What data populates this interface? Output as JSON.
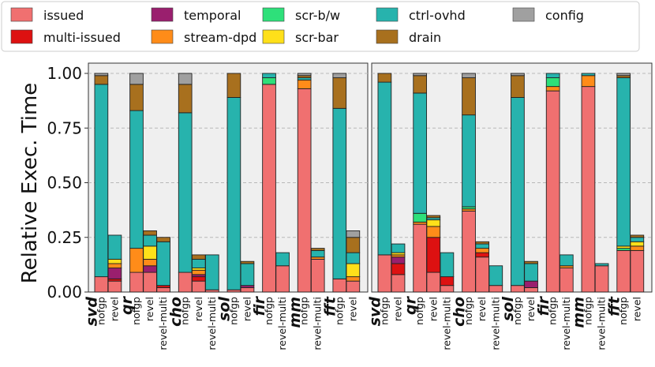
{
  "chart_data": {
    "type": "bar",
    "subtype": "stacked",
    "ylabel": "Relative Exec. Time",
    "ylim": [
      0,
      1.0
    ],
    "yticks": [
      "0.00",
      "0.25",
      "0.50",
      "0.75",
      "1.00"
    ],
    "ytick_values": [
      0,
      0.25,
      0.5,
      0.75,
      1.0
    ],
    "grid": "horizontal dashed",
    "legend_position": "top",
    "segments": [
      {
        "name": "issued",
        "color": "#f07070"
      },
      {
        "name": "multi-issued",
        "color": "#dd1111"
      },
      {
        "name": "temporal",
        "color": "#9a1f6e"
      },
      {
        "name": "stream-dpd",
        "color": "#ff8c19"
      },
      {
        "name": "scr-b/w",
        "color": "#2ee07a"
      },
      {
        "name": "scr-bar",
        "color": "#ffe01a"
      },
      {
        "name": "ctrl-ovhd",
        "color": "#27b3ad"
      },
      {
        "name": "drain",
        "color": "#a8701e"
      },
      {
        "name": "config",
        "color": "#a0a0a0"
      }
    ],
    "panels": [
      {
        "groups": [
          {
            "benchmark": "svd",
            "bars": [
              {
                "label": "nofgp",
                "values": [
                  0.07,
                  0.0,
                  0.0,
                  0.0,
                  0.0,
                  0.0,
                  0.88,
                  0.04,
                  0.01
                ]
              },
              {
                "label": "revel",
                "values": [
                  0.05,
                  0.01,
                  0.05,
                  0.02,
                  0.0,
                  0.02,
                  0.11,
                  0.0,
                  0.0
                ]
              }
            ]
          },
          {
            "benchmark": "qr",
            "bars": [
              {
                "label": "nofgp",
                "values": [
                  0.09,
                  0.0,
                  0.0,
                  0.11,
                  0.0,
                  0.0,
                  0.63,
                  0.12,
                  0.05
                ]
              },
              {
                "label": "revel",
                "values": [
                  0.09,
                  0.0,
                  0.03,
                  0.03,
                  0.0,
                  0.06,
                  0.05,
                  0.02,
                  0.0
                ]
              },
              {
                "label": "revel-multi",
                "values": [
                  0.02,
                  0.01,
                  0.0,
                  0.0,
                  0.0,
                  0.0,
                  0.2,
                  0.02,
                  0.0
                ]
              }
            ]
          },
          {
            "benchmark": "cho",
            "bars": [
              {
                "label": "nofgp",
                "values": [
                  0.09,
                  0.0,
                  0.0,
                  0.0,
                  0.0,
                  0.0,
                  0.73,
                  0.13,
                  0.05
                ]
              },
              {
                "label": "revel",
                "values": [
                  0.05,
                  0.02,
                  0.01,
                  0.02,
                  0.0,
                  0.01,
                  0.04,
                  0.02,
                  0.0
                ]
              },
              {
                "label": "revel-multi",
                "values": [
                  0.01,
                  0.0,
                  0.0,
                  0.0,
                  0.0,
                  0.0,
                  0.16,
                  0.0,
                  0.0
                ]
              }
            ]
          },
          {
            "benchmark": "sol",
            "bars": [
              {
                "label": "nofgp",
                "values": [
                  0.01,
                  0.0,
                  0.0,
                  0.0,
                  0.0,
                  0.0,
                  0.88,
                  0.11,
                  0.0
                ]
              },
              {
                "label": "revel",
                "values": [
                  0.02,
                  0.0,
                  0.01,
                  0.0,
                  0.0,
                  0.0,
                  0.1,
                  0.01,
                  0.0
                ]
              }
            ]
          },
          {
            "benchmark": "fir",
            "bars": [
              {
                "label": "nofgp",
                "values": [
                  0.95,
                  0.0,
                  0.0,
                  0.0,
                  0.03,
                  0.0,
                  0.02,
                  0.0,
                  0.0
                ]
              },
              {
                "label": "revel-multi",
                "values": [
                  0.12,
                  0.0,
                  0.0,
                  0.0,
                  0.0,
                  0.0,
                  0.06,
                  0.0,
                  0.0
                ]
              }
            ]
          },
          {
            "benchmark": "mm",
            "bars": [
              {
                "label": "nofgp",
                "values": [
                  0.93,
                  0.0,
                  0.0,
                  0.04,
                  0.0,
                  0.0,
                  0.01,
                  0.01,
                  0.01
                ]
              },
              {
                "label": "revel-multi",
                "values": [
                  0.15,
                  0.0,
                  0.0,
                  0.01,
                  0.0,
                  0.0,
                  0.03,
                  0.01,
                  0.0
                ]
              }
            ]
          },
          {
            "benchmark": "fft",
            "bars": [
              {
                "label": "nofgp",
                "values": [
                  0.06,
                  0.0,
                  0.0,
                  0.0,
                  0.0,
                  0.0,
                  0.78,
                  0.14,
                  0.02
                ]
              },
              {
                "label": "revel",
                "values": [
                  0.05,
                  0.0,
                  0.0,
                  0.02,
                  0.0,
                  0.06,
                  0.05,
                  0.07,
                  0.03
                ]
              }
            ]
          }
        ]
      },
      {
        "groups": [
          {
            "benchmark": "svd",
            "bars": [
              {
                "label": "nofgp",
                "values": [
                  0.17,
                  0.0,
                  0.0,
                  0.0,
                  0.0,
                  0.0,
                  0.79,
                  0.04,
                  0.0
                ]
              },
              {
                "label": "revel",
                "values": [
                  0.08,
                  0.05,
                  0.03,
                  0.01,
                  0.0,
                  0.01,
                  0.04,
                  0.0,
                  0.0
                ]
              }
            ]
          },
          {
            "benchmark": "qr",
            "bars": [
              {
                "label": "nofgp",
                "values": [
                  0.31,
                  0.0,
                  0.0,
                  0.01,
                  0.04,
                  0.0,
                  0.55,
                  0.08,
                  0.01
                ]
              },
              {
                "label": "revel",
                "values": [
                  0.09,
                  0.16,
                  0.0,
                  0.05,
                  0.0,
                  0.03,
                  0.01,
                  0.01,
                  0.0
                ]
              },
              {
                "label": "revel-multi",
                "values": [
                  0.03,
                  0.04,
                  0.0,
                  0.0,
                  0.0,
                  0.0,
                  0.11,
                  0.0,
                  0.0
                ]
              }
            ]
          },
          {
            "benchmark": "cho",
            "bars": [
              {
                "label": "nofgp",
                "values": [
                  0.37,
                  0.0,
                  0.0,
                  0.01,
                  0.01,
                  0.0,
                  0.42,
                  0.17,
                  0.02
                ]
              },
              {
                "label": "revel",
                "values": [
                  0.16,
                  0.02,
                  0.0,
                  0.02,
                  0.0,
                  0.0,
                  0.02,
                  0.01,
                  0.0
                ]
              },
              {
                "label": "revel-multi",
                "values": [
                  0.03,
                  0.0,
                  0.0,
                  0.0,
                  0.0,
                  0.0,
                  0.09,
                  0.0,
                  0.0
                ]
              }
            ]
          },
          {
            "benchmark": "sol",
            "bars": [
              {
                "label": "nofgp",
                "values": [
                  0.03,
                  0.0,
                  0.0,
                  0.0,
                  0.0,
                  0.0,
                  0.86,
                  0.1,
                  0.01
                ]
              },
              {
                "label": "revel",
                "values": [
                  0.02,
                  0.0,
                  0.03,
                  0.0,
                  0.0,
                  0.0,
                  0.08,
                  0.01,
                  0.0
                ]
              }
            ]
          },
          {
            "benchmark": "fir",
            "bars": [
              {
                "label": "nofgp",
                "values": [
                  0.92,
                  0.0,
                  0.0,
                  0.02,
                  0.04,
                  0.0,
                  0.02,
                  0.0,
                  0.0
                ]
              },
              {
                "label": "revel-multi",
                "values": [
                  0.11,
                  0.0,
                  0.0,
                  0.01,
                  0.0,
                  0.0,
                  0.05,
                  0.0,
                  0.0
                ]
              }
            ]
          },
          {
            "benchmark": "mm",
            "bars": [
              {
                "label": "nofgp",
                "values": [
                  0.94,
                  0.0,
                  0.0,
                  0.05,
                  0.0,
                  0.0,
                  0.01,
                  0.0,
                  0.0
                ]
              },
              {
                "label": "revel-multi",
                "values": [
                  0.12,
                  0.0,
                  0.0,
                  0.0,
                  0.0,
                  0.0,
                  0.01,
                  0.0,
                  0.0
                ]
              }
            ]
          },
          {
            "benchmark": "fft",
            "bars": [
              {
                "label": "nofgp",
                "values": [
                  0.19,
                  0.0,
                  0.0,
                  0.0,
                  0.01,
                  0.01,
                  0.77,
                  0.01,
                  0.01
                ]
              },
              {
                "label": "revel",
                "values": [
                  0.19,
                  0.0,
                  0.0,
                  0.02,
                  0.0,
                  0.02,
                  0.02,
                  0.01,
                  0.0
                ]
              }
            ]
          }
        ]
      }
    ]
  }
}
